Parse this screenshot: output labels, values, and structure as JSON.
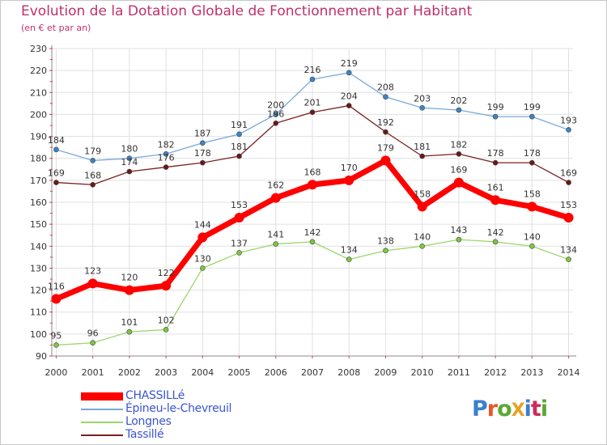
{
  "title": "Evolution de la Dotation Globale de Fonctionnement par Habitant",
  "subtitle": "(en € et par an)",
  "logo": "ProXiti",
  "colors": {
    "title": "#c0306a",
    "axis": "#888888",
    "grid": "#e0e0e0",
    "tick_marks": "#d04060",
    "legend_text": "#3a55d0"
  },
  "chart_data": {
    "type": "line",
    "title": "Evolution de la Dotation Globale de Fonctionnement par Habitant",
    "subtitle": "(en € et par an)",
    "xlabel": "",
    "ylabel": "",
    "x": [
      "2000",
      "2001",
      "2002",
      "2003",
      "2004",
      "2005",
      "2006",
      "2007",
      "2008",
      "2009",
      "2010",
      "2011",
      "2012",
      "2013",
      "2014"
    ],
    "ylim": [
      90,
      230
    ],
    "yticks": [
      90,
      100,
      110,
      120,
      130,
      140,
      150,
      160,
      170,
      180,
      190,
      200,
      210,
      220,
      230
    ],
    "grid": true,
    "legend_position": "bottom-left",
    "series": [
      {
        "name": "CHASSILLé",
        "color": "#ff0000",
        "marker_color": "#ff0000",
        "line_width": 7,
        "marker_radius": 6,
        "values": [
          116,
          123,
          120,
          122,
          144,
          153,
          162,
          168,
          170,
          179,
          158,
          169,
          161,
          158,
          153
        ]
      },
      {
        "name": "Épineu-le-Chevreuil",
        "color": "#78a8d8",
        "marker_color": "#3a85c8",
        "line_width": 1.3,
        "marker_radius": 3,
        "values": [
          184,
          179,
          180,
          182,
          187,
          191,
          200,
          216,
          219,
          208,
          203,
          202,
          199,
          199,
          193
        ]
      },
      {
        "name": "Longnes",
        "color": "#99d66c",
        "marker_color": "#7cc840",
        "line_width": 1.3,
        "marker_radius": 3,
        "values": [
          95,
          96,
          101,
          102,
          130,
          137,
          141,
          142,
          134,
          138,
          140,
          143,
          142,
          140,
          134
        ]
      },
      {
        "name": "Tassillé",
        "color": "#7a2020",
        "marker_color": "#6a1818",
        "line_width": 1.3,
        "marker_radius": 3,
        "values": [
          169,
          168,
          174,
          176,
          178,
          181,
          196,
          201,
          204,
          192,
          181,
          182,
          178,
          178,
          169
        ]
      }
    ]
  }
}
